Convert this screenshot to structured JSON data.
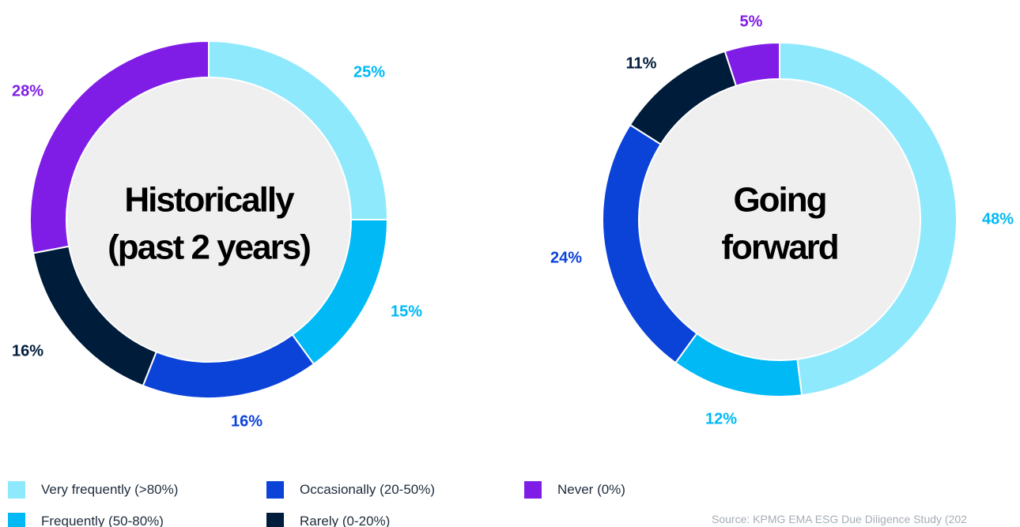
{
  "colors": {
    "very_frequently": "#8fe9fd",
    "frequently": "#00b9f5",
    "occasionally": "#0b43d9",
    "rarely": "#001c3b",
    "never": "#7f1de7",
    "center_fill": "#efeff0"
  },
  "legend": {
    "items": [
      {
        "label": "Very frequently (>80%)",
        "color": "#8fe9fd"
      },
      {
        "label": "Frequently (50-80%)",
        "color": "#00b9f5"
      },
      {
        "label": "Occasionally (20-50%)",
        "color": "#0b43d9"
      },
      {
        "label": "Rarely (0-20%)",
        "color": "#001c3b"
      },
      {
        "label": "Never (0%)",
        "color": "#7f1de7"
      }
    ]
  },
  "source": "Source: KPMG EMA ESG Due Diligence Study (202",
  "chart_data": [
    {
      "type": "pie",
      "variant": "donut",
      "center_label": [
        "Historically",
        "(past 2 years)"
      ],
      "categories": [
        "Very frequently (>80%)",
        "Frequently (50-80%)",
        "Occasionally (20-50%)",
        "Rarely (0-20%)",
        "Never (0%)"
      ],
      "values": [
        25,
        15,
        16,
        16,
        28
      ],
      "data_labels": [
        "25%",
        "15%",
        "16%",
        "16%",
        "28%"
      ],
      "colors": [
        "#8fe9fd",
        "#00b9f5",
        "#0b43d9",
        "#001c3b",
        "#7f1de7"
      ],
      "label_colors": [
        "#00b9f5",
        "#00b9f5",
        "#0b43d9",
        "#001c3b",
        "#7f1de7"
      ]
    },
    {
      "type": "pie",
      "variant": "donut",
      "center_label": [
        "Going",
        "forward"
      ],
      "categories": [
        "Very frequently (>80%)",
        "Frequently (50-80%)",
        "Occasionally (20-50%)",
        "Rarely (0-20%)",
        "Never (0%)"
      ],
      "values": [
        48,
        12,
        24,
        11,
        5
      ],
      "data_labels": [
        "48%",
        "12%",
        "24%",
        "11%",
        "5%"
      ],
      "colors": [
        "#8fe9fd",
        "#00b9f5",
        "#0b43d9",
        "#001c3b",
        "#7f1de7"
      ],
      "label_colors": [
        "#00b9f5",
        "#00b9f5",
        "#0b43d9",
        "#001c3b",
        "#7f1de7"
      ]
    }
  ]
}
